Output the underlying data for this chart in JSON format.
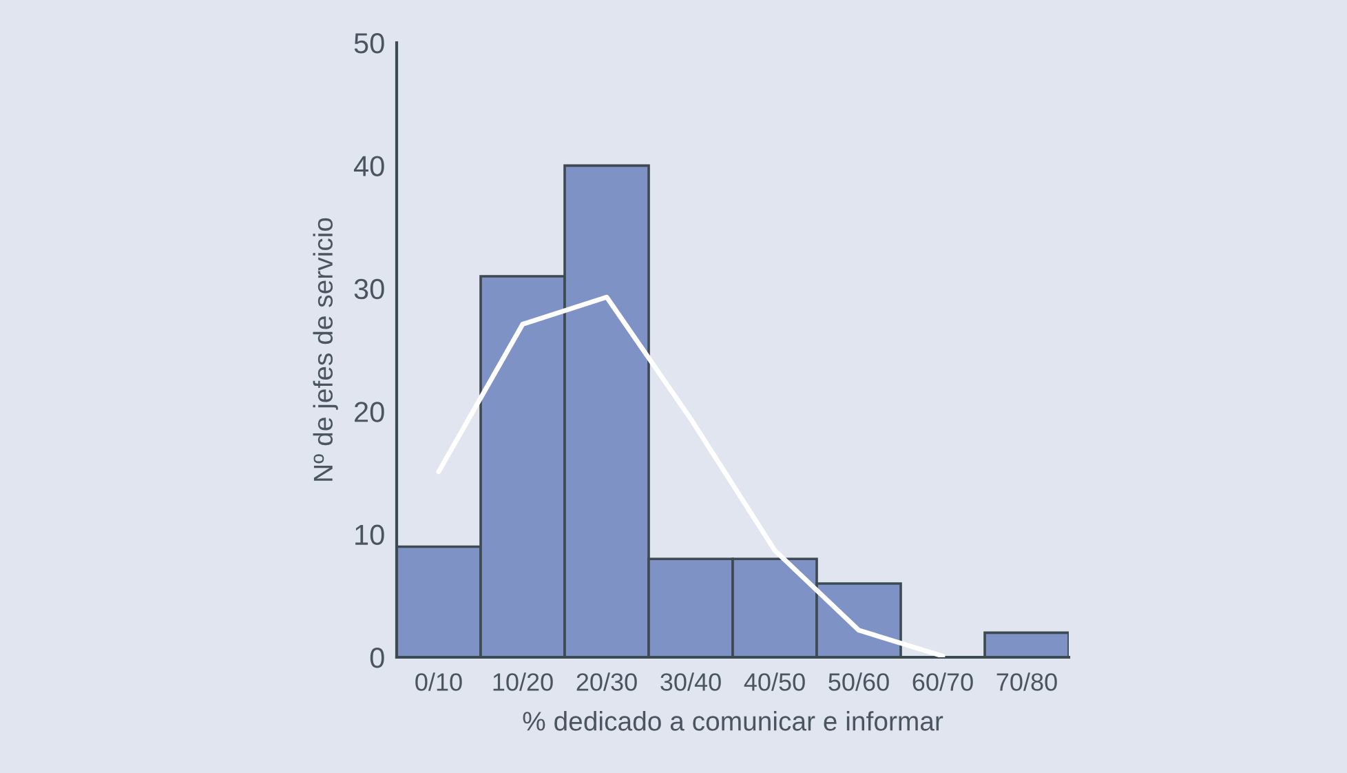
{
  "chart_data": {
    "type": "bar",
    "xlabel": "% dedicado a comunicar e informar",
    "ylabel": "Nº de jefes de servicio",
    "categories": [
      "0/10",
      "10/20",
      "20/30",
      "30/40",
      "40/50",
      "50/60",
      "60/70",
      "70/80"
    ],
    "values": [
      9,
      31,
      40,
      8,
      8,
      6,
      0,
      2
    ],
    "color": "#7f92c5",
    "series": [
      {
        "type": "line",
        "color": "#ffffff",
        "values": [
          15.1,
          27.1,
          29.3,
          19.4,
          8.7,
          2.2,
          0.1,
          null
        ]
      }
    ],
    "ylim": [
      0,
      50
    ],
    "yticks": [
      0,
      10,
      20,
      30,
      40,
      50
    ],
    "grid": false,
    "legend": false
  }
}
